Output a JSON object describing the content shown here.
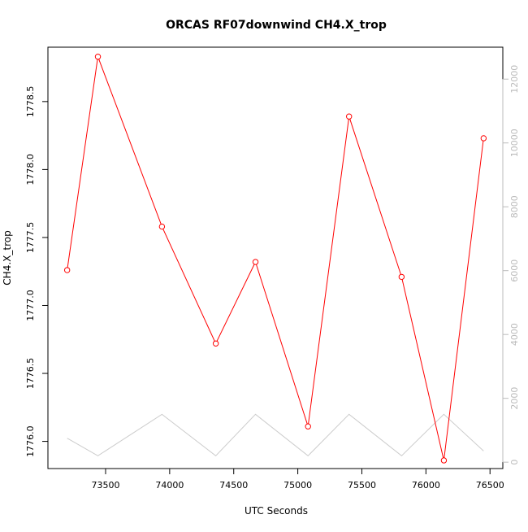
{
  "chart_data": {
    "type": "line",
    "title": "ORCAS RF07downwind CH4.X_trop",
    "xlabel": "UTC Seconds",
    "ylabel": "CH4.X_trop",
    "xlim": [
      73050,
      76600
    ],
    "ylim": [
      1775.8,
      1778.9
    ],
    "y2lim": [
      -200,
      13000
    ],
    "x_ticks": [
      73500,
      74000,
      74500,
      75000,
      75500,
      76000,
      76500
    ],
    "x_tick_labels": [
      "73500",
      "74000",
      "74500",
      "75000",
      "75500",
      "76000",
      "76500"
    ],
    "y_ticks": [
      1776.0,
      1776.5,
      1777.0,
      1777.5,
      1778.0,
      1778.5
    ],
    "y_tick_labels": [
      "1776.0",
      "1776.5",
      "1777.0",
      "1777.5",
      "1778.0",
      "1778.5"
    ],
    "y2_ticks": [
      0,
      2000,
      4000,
      6000,
      8000,
      10000,
      12000
    ],
    "y2_tick_labels": [
      "0",
      "2000",
      "4000",
      "6000",
      "8000",
      "10000",
      "12000"
    ],
    "grid": false,
    "series": [
      {
        "color": "#ff0000",
        "markers": "open-circle",
        "x": [
          73200,
          73440,
          73940,
          74360,
          74670,
          75080,
          75400,
          75810,
          76140,
          76450
        ],
        "y": [
          1777.26,
          1778.83,
          1777.58,
          1776.72,
          1777.32,
          1776.11,
          1778.39,
          1777.21,
          1775.86,
          1778.23
        ]
      },
      {
        "color": "#cccccc",
        "markers": "none",
        "axis": "right",
        "x": [
          73200,
          73440,
          73940,
          74360,
          74670,
          75080,
          75400,
          75810,
          76140,
          76450
        ],
        "y": [
          750,
          200,
          1500,
          200,
          1500,
          200,
          1500,
          200,
          1500,
          350
        ]
      }
    ]
  }
}
